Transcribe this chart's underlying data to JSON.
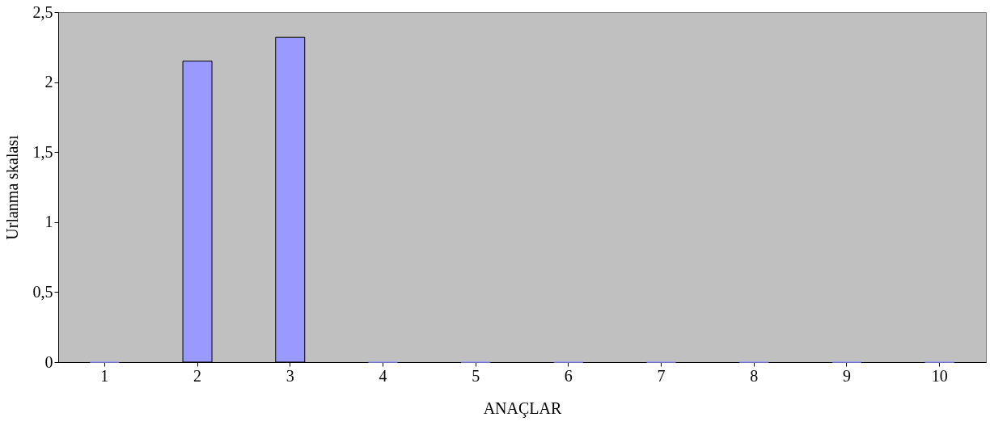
{
  "chart_data": {
    "type": "bar",
    "xlabel": "ANAÇLAR",
    "ylabel": "Urlanma skalası",
    "categories": [
      "1",
      "2",
      "3",
      "4",
      "5",
      "6",
      "7",
      "8",
      "9",
      "10"
    ],
    "values": [
      0,
      2.15,
      2.32,
      0,
      0,
      0,
      0,
      0,
      0,
      0
    ],
    "color": "#9999ff",
    "ylim": [
      0,
      2.5
    ],
    "yticks": [
      0,
      {
        "value": 0.5,
        "label": "0,5"
      },
      1,
      {
        "value": 1.5,
        "label": "1,5"
      },
      2,
      {
        "value": 2.5,
        "label": "2,5"
      }
    ],
    "grid": false
  }
}
